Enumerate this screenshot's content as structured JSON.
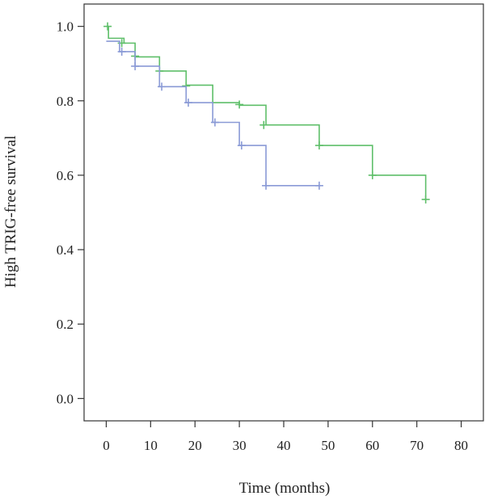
{
  "chart_data": {
    "type": "line",
    "title": "",
    "xlabel": "Time (months)",
    "ylabel": "High TRIG-free survival",
    "xlim": [
      -5,
      85
    ],
    "ylim": [
      -0.06,
      1.06
    ],
    "xticks": [
      0,
      10,
      20,
      30,
      40,
      50,
      60,
      70,
      80
    ],
    "yticks": [
      0.0,
      0.2,
      0.4,
      0.6,
      0.8,
      1.0
    ],
    "ytick_labels": [
      "0.0",
      "0.2",
      "0.4",
      "0.6",
      "0.8",
      "1.0"
    ],
    "grid": false,
    "legend": "none",
    "step": true,
    "series": [
      {
        "color": "#5fbf6a",
        "steps": [
          [
            0,
            1.0
          ],
          [
            0.5,
            0.968
          ],
          [
            4,
            0.955
          ],
          [
            6.5,
            0.918
          ],
          [
            12,
            0.88
          ],
          [
            18,
            0.842
          ],
          [
            24,
            0.795
          ],
          [
            30,
            0.788
          ],
          [
            36,
            0.735
          ],
          [
            48,
            0.68
          ],
          [
            60,
            0.6
          ],
          [
            72,
            0.535
          ]
        ],
        "end_x": 72,
        "censor": [
          [
            0.3,
            1.0
          ],
          [
            3.5,
            0.955
          ],
          [
            6.5,
            0.92
          ],
          [
            12,
            0.88
          ],
          [
            18,
            0.84
          ],
          [
            30,
            0.79
          ],
          [
            35.5,
            0.735
          ],
          [
            48,
            0.68
          ],
          [
            60,
            0.6
          ],
          [
            72,
            0.535
          ]
        ]
      },
      {
        "color": "#8a9ad6",
        "steps": [
          [
            0,
            0.96
          ],
          [
            3,
            0.932
          ],
          [
            6.5,
            0.893
          ],
          [
            12,
            0.838
          ],
          [
            18,
            0.795
          ],
          [
            24,
            0.742
          ],
          [
            30,
            0.68
          ],
          [
            36,
            0.572
          ]
        ],
        "end_x": 48,
        "censor": [
          [
            3.5,
            0.932
          ],
          [
            6.5,
            0.893
          ],
          [
            12.5,
            0.838
          ],
          [
            18.5,
            0.795
          ],
          [
            24.5,
            0.742
          ],
          [
            30.5,
            0.68
          ],
          [
            36,
            0.572
          ],
          [
            48,
            0.572
          ]
        ]
      }
    ]
  }
}
